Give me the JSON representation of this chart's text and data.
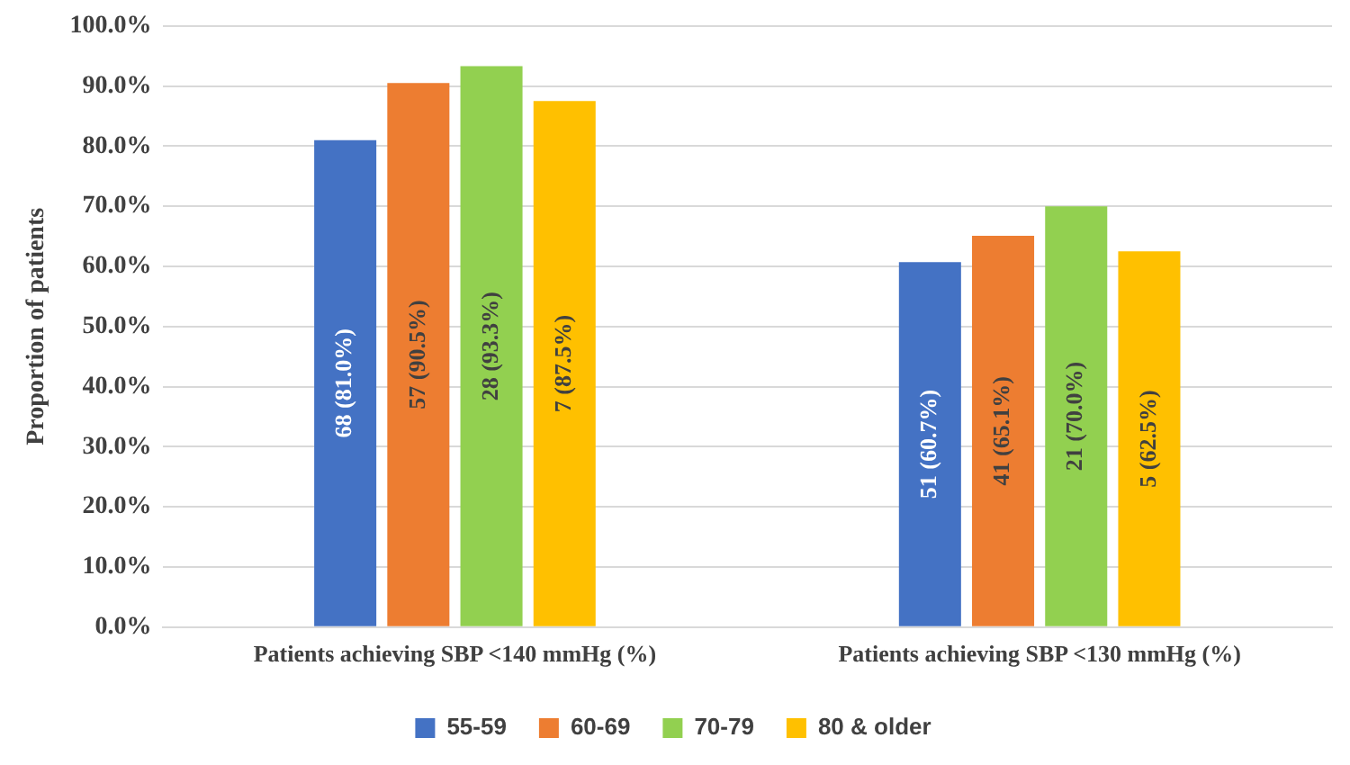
{
  "chart_data": {
    "type": "bar",
    "ylabel": "Proportion of patients",
    "categories": [
      "Patients achieving SBP <140 mmHg (%)",
      "Patients achieving SBP <130 mmHg (%)"
    ],
    "series": [
      {
        "name": "55-59",
        "color": "#4472c4",
        "values": [
          81.0,
          60.7
        ],
        "value_labels": [
          "68 (81.0%)",
          "51 (60.7%)"
        ]
      },
      {
        "name": "60-69",
        "color": "#ed7d31",
        "values": [
          90.5,
          65.1
        ],
        "value_labels": [
          "57 (90.5%)",
          "41 (65.1%)"
        ]
      },
      {
        "name": "70-79",
        "color": "#92d050",
        "values": [
          93.3,
          70.0
        ],
        "value_labels": [
          "28 (93.3%)",
          "21 (70.0%)"
        ]
      },
      {
        "name": "80 & older",
        "color": "#ffc000",
        "values": [
          87.5,
          62.5
        ],
        "value_labels": [
          "7 (87.5%)",
          "5 (62.5%)"
        ]
      }
    ],
    "ylim": [
      0,
      100
    ],
    "yticks": [
      {
        "value": 0,
        "label": "0.0%"
      },
      {
        "value": 10,
        "label": "10.0%"
      },
      {
        "value": 20,
        "label": "20.0%"
      },
      {
        "value": 30,
        "label": "30.0%"
      },
      {
        "value": 40,
        "label": "40.0%"
      },
      {
        "value": 50,
        "label": "50.0%"
      },
      {
        "value": 60,
        "label": "60.0%"
      },
      {
        "value": 70,
        "label": "70.0%"
      },
      {
        "value": 80,
        "label": "80.0%"
      },
      {
        "value": 90,
        "label": "90.0%"
      },
      {
        "value": 100,
        "label": "100.0%"
      }
    ],
    "grid": "y",
    "legend": "bottom"
  }
}
